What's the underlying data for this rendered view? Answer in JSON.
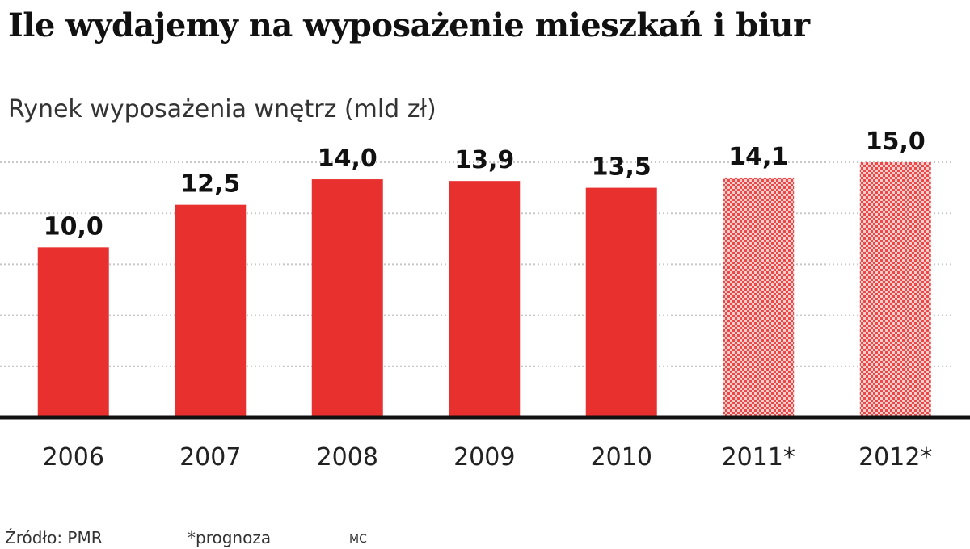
{
  "chart_data": {
    "type": "bar",
    "title": "Ile wydajemy na wyposażenie mieszkań i biur",
    "subtitle": "Rynek wyposażenia wnętrz (mld zł)",
    "categories": [
      "2006",
      "2007",
      "2008",
      "2009",
      "2010",
      "2011*",
      "2012*"
    ],
    "values": [
      10.0,
      12.5,
      14.0,
      13.9,
      13.5,
      14.1,
      15.0
    ],
    "value_labels": [
      "10,0",
      "12,5",
      "14,0",
      "13,9",
      "13,5",
      "14,1",
      "15,0"
    ],
    "forecast": [
      false,
      false,
      false,
      false,
      false,
      true,
      true
    ],
    "ylim": [
      0,
      15
    ],
    "grid": true,
    "colors": {
      "bar": "#e8312f",
      "forecast_bar": "#f4a6a4",
      "grid": "#c8c8c8",
      "baseline": "#111111"
    }
  },
  "footer": {
    "source": "Źródło: PMR",
    "note": "*prognoza",
    "credit": "MC"
  }
}
